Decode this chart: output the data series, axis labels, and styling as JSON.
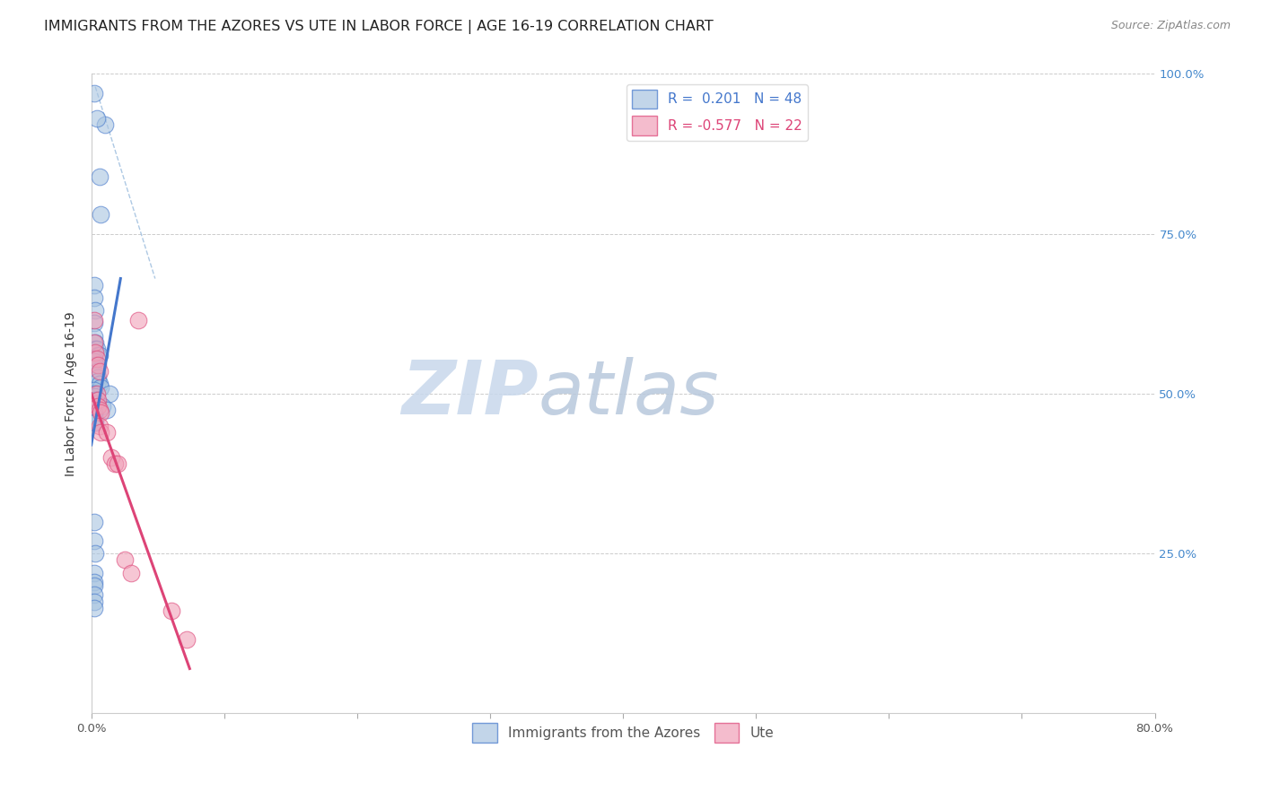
{
  "title": "IMMIGRANTS FROM THE AZORES VS UTE IN LABOR FORCE | AGE 16-19 CORRELATION CHART",
  "source": "Source: ZipAtlas.com",
  "ylabel": "In Labor Force | Age 16-19",
  "xmin": 0.0,
  "xmax": 0.8,
  "ymin": 0.0,
  "ymax": 1.0,
  "xticks": [
    0.0,
    0.1,
    0.2,
    0.3,
    0.4,
    0.5,
    0.6,
    0.7,
    0.8
  ],
  "yticks": [
    0.0,
    0.25,
    0.5,
    0.75,
    1.0
  ],
  "ytick_labels_right": [
    "",
    "25.0%",
    "50.0%",
    "75.0%",
    "100.0%"
  ],
  "blue_scatter_x": [
    0.002,
    0.006,
    0.01,
    0.004,
    0.007,
    0.002,
    0.002,
    0.003,
    0.002,
    0.002,
    0.003,
    0.003,
    0.004,
    0.005,
    0.006,
    0.002,
    0.002,
    0.003,
    0.003,
    0.004,
    0.004,
    0.005,
    0.005,
    0.006,
    0.007,
    0.002,
    0.002,
    0.003,
    0.003,
    0.004,
    0.014,
    0.002,
    0.008,
    0.012,
    0.002,
    0.002,
    0.002,
    0.002,
    0.003,
    0.002,
    0.002,
    0.003,
    0.002,
    0.002,
    0.002,
    0.002,
    0.002,
    0.002
  ],
  "blue_scatter_y": [
    0.97,
    0.84,
    0.92,
    0.93,
    0.78,
    0.67,
    0.65,
    0.63,
    0.61,
    0.59,
    0.58,
    0.57,
    0.57,
    0.56,
    0.56,
    0.555,
    0.55,
    0.545,
    0.54,
    0.535,
    0.53,
    0.525,
    0.52,
    0.515,
    0.51,
    0.505,
    0.5,
    0.495,
    0.49,
    0.49,
    0.5,
    0.485,
    0.48,
    0.475,
    0.47,
    0.465,
    0.46,
    0.455,
    0.455,
    0.3,
    0.27,
    0.25,
    0.22,
    0.205,
    0.2,
    0.185,
    0.175,
    0.165
  ],
  "pink_scatter_x": [
    0.002,
    0.002,
    0.003,
    0.004,
    0.005,
    0.006,
    0.004,
    0.005,
    0.005,
    0.006,
    0.007,
    0.006,
    0.007,
    0.012,
    0.015,
    0.018,
    0.02,
    0.025,
    0.03,
    0.06,
    0.072,
    0.035
  ],
  "pink_scatter_y": [
    0.615,
    0.58,
    0.565,
    0.555,
    0.545,
    0.535,
    0.5,
    0.49,
    0.48,
    0.475,
    0.47,
    0.45,
    0.44,
    0.44,
    0.4,
    0.39,
    0.39,
    0.24,
    0.22,
    0.16,
    0.115,
    0.615
  ],
  "blue_line_x": [
    0.0,
    0.022
  ],
  "blue_line_y": [
    0.42,
    0.68
  ],
  "pink_line_x": [
    0.0,
    0.074
  ],
  "pink_line_y": [
    0.5,
    0.07
  ],
  "diag_line_x": [
    0.003,
    0.048
  ],
  "diag_line_y": [
    0.98,
    0.68
  ],
  "R_blue": 0.201,
  "N_blue": 48,
  "R_pink": -0.577,
  "N_pink": 22,
  "blue_color": "#a8c4e0",
  "pink_color": "#f0a0b8",
  "blue_line_color": "#4477cc",
  "pink_line_color": "#dd4477",
  "diag_line_color": "#99bbdd",
  "watermark_zip_color": "#c8d8ec",
  "watermark_atlas_color": "#b8c8dc",
  "title_fontsize": 11.5,
  "source_fontsize": 9,
  "label_fontsize": 10,
  "tick_fontsize": 9.5,
  "legend_fontsize": 11
}
